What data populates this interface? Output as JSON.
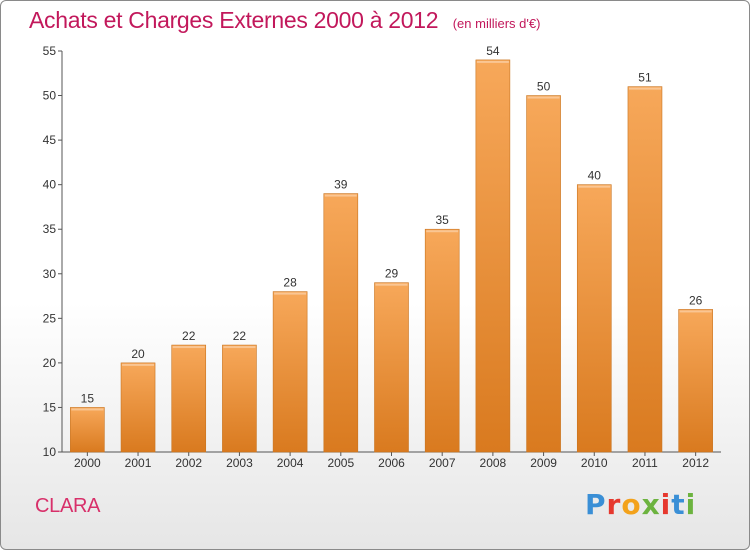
{
  "page": {
    "title": "Achats et Charges Externes 2000 à 2012",
    "unit": "(en milliers d'€)",
    "place": "CLARA",
    "brand": "Proxiti"
  },
  "colors": {
    "title": "#c2185b",
    "place": "#d8306a",
    "bar_top": "#f7a85a",
    "bar_bottom": "#d97a1f",
    "brand_letters": [
      "#3a8fd6",
      "#e6382e",
      "#f3a21b",
      "#6cb33f",
      "#e6382e",
      "#3a8fd6",
      "#6cb33f"
    ]
  },
  "chart_data": {
    "type": "bar",
    "title": "Achats et Charges Externes 2000 à 2012",
    "subtitle": "(en milliers d'€)",
    "xlabel": "",
    "ylabel": "",
    "categories": [
      "2000",
      "2001",
      "2002",
      "2003",
      "2004",
      "2005",
      "2006",
      "2007",
      "2008",
      "2009",
      "2010",
      "2011",
      "2012"
    ],
    "values": [
      15,
      20,
      22,
      22,
      28,
      39,
      29,
      35,
      54,
      50,
      40,
      51,
      26
    ],
    "ylim": [
      10,
      55
    ],
    "yticks": [
      10,
      15,
      20,
      25,
      30,
      35,
      40,
      45,
      50,
      55
    ],
    "grid": false,
    "legend": "none"
  }
}
